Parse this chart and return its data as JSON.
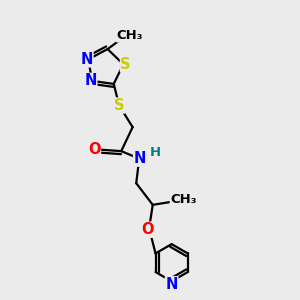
{
  "bg_color": "#ebebeb",
  "atom_colors": {
    "C": "#000000",
    "N": "#0000ff",
    "S": "#cccc00",
    "O": "#ff0000",
    "H": "#008080"
  },
  "bond_color": "#000000",
  "bond_width": 1.6,
  "font_size_atoms": 10.5,
  "font_size_small": 9.5
}
